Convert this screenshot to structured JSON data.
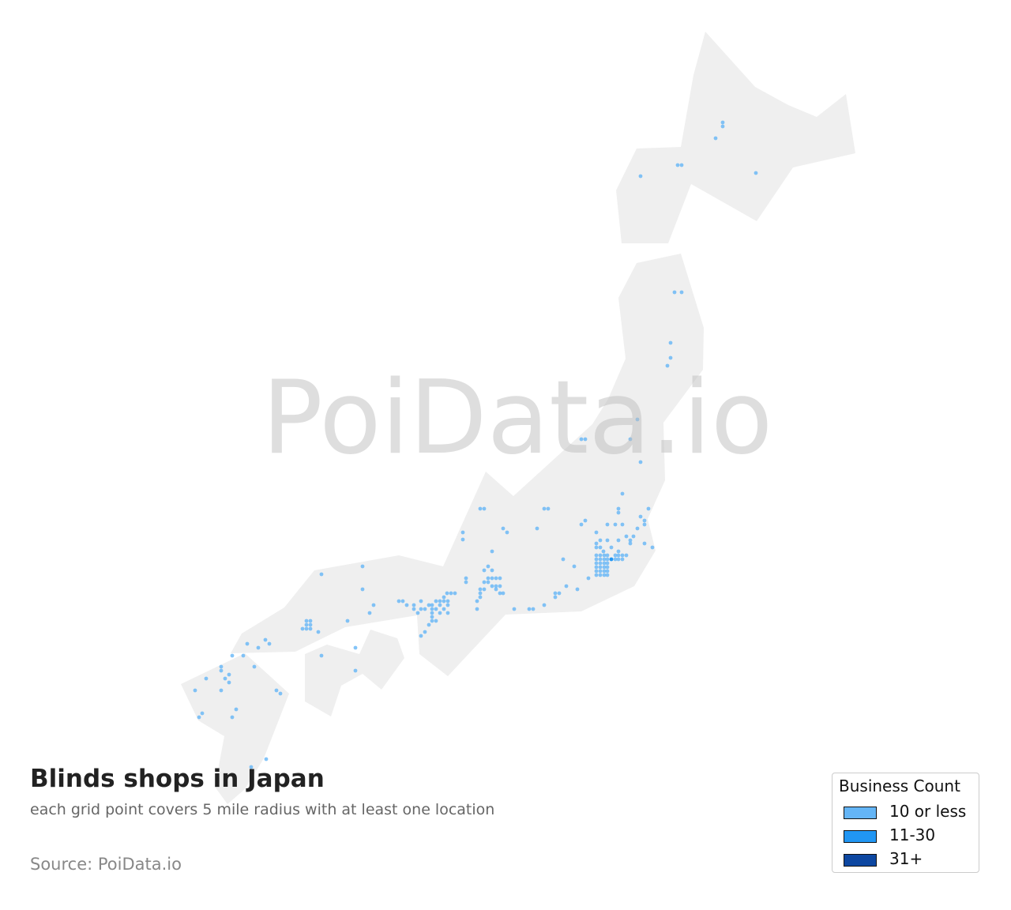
{
  "title": "Blinds shops in Japan",
  "subtitle": "each grid point covers 5 mile radius with at least one location",
  "source": "Source: PoiData.io",
  "watermark": "PoiData.io",
  "colors": {
    "land": "#efefef",
    "point": "#64b5f6",
    "point_mid": "#2196f3",
    "point_high": "#0d47a1"
  },
  "legend": {
    "title": "Business Count",
    "items": [
      {
        "label": "10 or less",
        "color": "#64b5f6"
      },
      {
        "label": "11-30",
        "color": "#2196f3"
      },
      {
        "label": "31+",
        "color": "#0d47a1"
      }
    ]
  }
}
